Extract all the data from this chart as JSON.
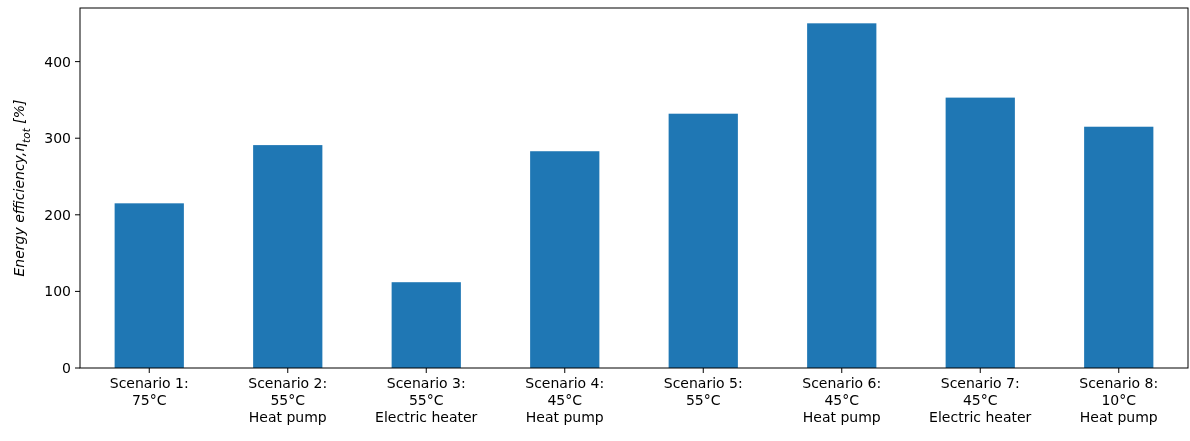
{
  "chart_data": {
    "type": "bar",
    "ylabel": "Energy efficiency,η$_{tot}$ [%]",
    "categories": [
      "Scenario 1:\n75°C",
      "Scenario 2:\n55°C\nHeat pump",
      "Scenario 3:\n55°C\nElectric heater",
      "Scenario 4:\n45°C\nHeat pump",
      "Scenario 5:\n55°C",
      "Scenario 6:\n45°C\nHeat pump",
      "Scenario 7:\n45°C\nElectric heater",
      "Scenario 8:\n10°C\nHeat pump"
    ],
    "values": [
      215,
      291,
      112,
      283,
      332,
      450,
      353,
      315
    ],
    "color": "#1f77b4",
    "ylim": [
      0,
      470
    ],
    "yticks": [
      0,
      100,
      200,
      300,
      400
    ],
    "grid": false
  }
}
